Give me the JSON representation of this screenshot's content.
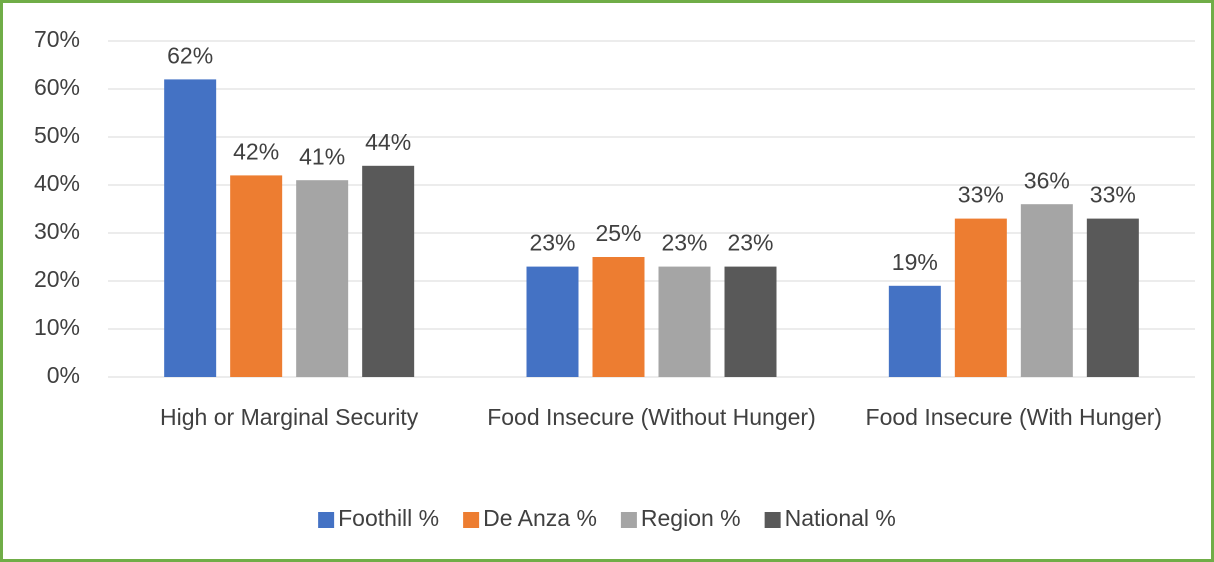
{
  "chart_data": {
    "type": "bar",
    "categories": [
      "High or Marginal Security",
      "Food Insecure (Without Hunger)",
      "Food Insecure (With Hunger)"
    ],
    "series": [
      {
        "name": "Foothill %",
        "color": "#4472c4",
        "values": [
          62,
          23,
          19
        ],
        "value_labels": [
          "62%",
          "23%",
          "19%"
        ]
      },
      {
        "name": "De Anza %",
        "color": "#ed7d31",
        "values": [
          42,
          25,
          33
        ],
        "value_labels": [
          "42%",
          "25%",
          "33%"
        ]
      },
      {
        "name": "Region %",
        "color": "#a5a5a5",
        "values": [
          41,
          23,
          36
        ],
        "value_labels": [
          "41%",
          "23%",
          "36%"
        ]
      },
      {
        "name": "National %",
        "color": "#595959",
        "values": [
          44,
          23,
          33
        ],
        "value_labels": [
          "44%",
          "23%",
          "33%"
        ]
      }
    ],
    "ylim": [
      0,
      70
    ],
    "yticks": [
      {
        "value": 0,
        "label": "0%"
      },
      {
        "value": 10,
        "label": "10%"
      },
      {
        "value": 20,
        "label": "20%"
      },
      {
        "value": 30,
        "label": "30%"
      },
      {
        "value": 40,
        "label": "40%"
      },
      {
        "value": 50,
        "label": "50%"
      },
      {
        "value": 60,
        "label": "60%"
      },
      {
        "value": 70,
        "label": "70%"
      }
    ],
    "grid": true,
    "legend": "bottom"
  }
}
